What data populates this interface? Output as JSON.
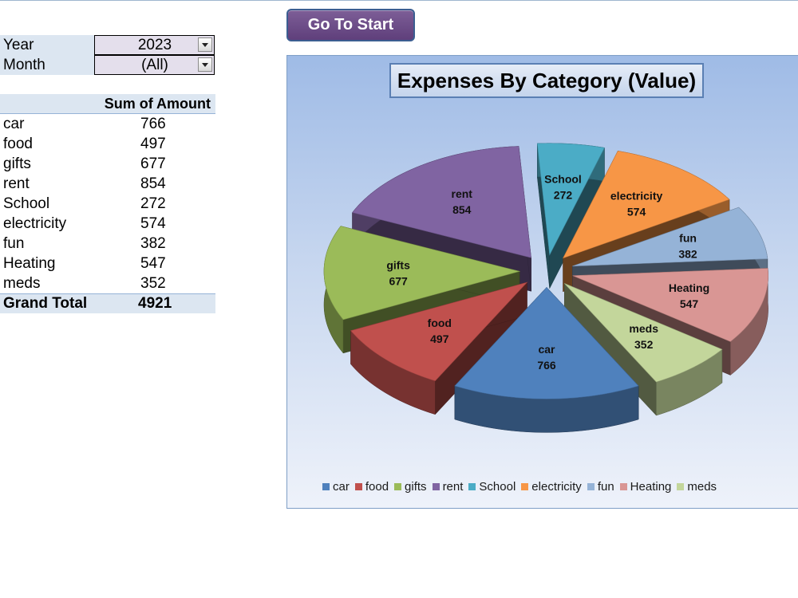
{
  "filters": {
    "year": {
      "label": "Year",
      "value": "2023"
    },
    "month": {
      "label": "Month",
      "value": "(All)"
    }
  },
  "pivot": {
    "header": "Sum of Amount",
    "rows": [
      {
        "category": "car",
        "amount": "766"
      },
      {
        "category": "food",
        "amount": "497"
      },
      {
        "category": "gifts",
        "amount": "677"
      },
      {
        "category": "rent",
        "amount": "854"
      },
      {
        "category": "School",
        "amount": "272"
      },
      {
        "category": "electricity",
        "amount": "574"
      },
      {
        "category": "fun",
        "amount": "382"
      },
      {
        "category": "Heating",
        "amount": "547"
      },
      {
        "category": "meds",
        "amount": "352"
      }
    ],
    "total_label": "Grand Total",
    "total_value": "4921"
  },
  "go_button": {
    "label": "Go To Start"
  },
  "chart_data": {
    "type": "pie",
    "title": "Expenses By Category (Value)",
    "categories": [
      "car",
      "food",
      "gifts",
      "rent",
      "School",
      "electricity",
      "fun",
      "Heating",
      "meds"
    ],
    "values": [
      766,
      497,
      677,
      854,
      272,
      574,
      382,
      547,
      352
    ],
    "colors": [
      "#4f81bd",
      "#c0504d",
      "#9bbb59",
      "#8064a2",
      "#4bacc6",
      "#f79646",
      "#95b3d7",
      "#d99694",
      "#c3d69b"
    ],
    "legend_position": "bottom",
    "exploded": true,
    "style": "3d"
  }
}
